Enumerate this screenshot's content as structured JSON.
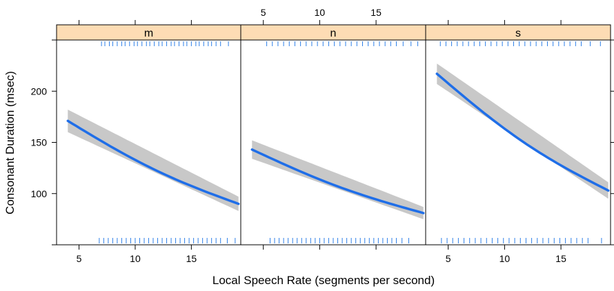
{
  "chart_data": {
    "type": "line",
    "xlabel": "Local Speech Rate (segments per second)",
    "ylabel": "Consonant Duration (msec)",
    "xlim": [
      3,
      19.4
    ],
    "ylim": [
      50,
      250
    ],
    "x_ticks": [
      5,
      10,
      15
    ],
    "y_ticks": [
      100,
      150,
      200
    ],
    "strip_color": "#fddcb4",
    "line_color": "#1f6ee8",
    "band_color": "#c8c8c8",
    "rug_color": "#2d7fe8",
    "panels": [
      {
        "label": "m",
        "x": [
          4,
          19.2
        ],
        "y": [
          171,
          90
        ],
        "band_half_width": [
          11,
          7
        ],
        "rug_top": [
          7,
          7.3,
          7.7,
          8,
          8.4,
          8.8,
          9.1,
          9.5,
          9.9,
          10.2,
          10.6,
          11,
          11.3,
          11.7,
          12.1,
          12.4,
          12.8,
          13.2,
          13.5,
          13.9,
          14.3,
          14.6,
          15,
          15.4,
          15.7,
          16.1,
          16.5,
          16.8,
          17.2,
          17.6,
          18.3
        ],
        "rug_bottom": [
          6.8,
          7.2,
          7.6,
          8,
          8.4,
          8.8,
          9.2,
          9.6,
          10,
          10.4,
          10.8,
          11.2,
          11.6,
          12,
          12.4,
          12.8,
          13.2,
          13.6,
          14,
          14.4,
          14.8,
          15.2,
          15.6,
          16,
          16.4,
          16.8,
          17.2,
          17.6,
          18.2,
          18.9
        ]
      },
      {
        "label": "n",
        "x": [
          4,
          19.2
        ],
        "y": [
          143,
          81
        ],
        "band_half_width": [
          9,
          6
        ],
        "rug_top": [
          5.3,
          5.8,
          6.3,
          6.8,
          7.3,
          7.8,
          8.3,
          8.8,
          9.3,
          9.8,
          10.3,
          10.8,
          11.3,
          11.8,
          12.3,
          12.8,
          13.3,
          13.8,
          14.3,
          14.8,
          15.3,
          15.8,
          16.3,
          16.8,
          17.4,
          18.1,
          18.7
        ],
        "rug_bottom": [
          5.6,
          6,
          6.4,
          6.8,
          7.2,
          7.6,
          8,
          8.4,
          8.8,
          9.2,
          9.6,
          10,
          10.4,
          10.8,
          11.2,
          11.6,
          12,
          12.4,
          12.8,
          13.2,
          13.6,
          14,
          14.4,
          14.8,
          15.2,
          15.6,
          16,
          16.4,
          16.8,
          17.3,
          17.9
        ]
      },
      {
        "label": "s",
        "x": [
          4,
          19.2
        ],
        "y": [
          217,
          103
        ],
        "band_half_width": [
          10,
          8
        ],
        "rug_top": [
          4.3,
          4.8,
          5.3,
          5.8,
          6.3,
          6.8,
          7.3,
          7.8,
          8.3,
          8.8,
          9.3,
          9.8,
          10.3,
          10.8,
          11.3,
          11.8,
          12.3,
          12.8,
          13.3,
          13.8,
          14.3,
          14.8,
          15.3,
          15.8,
          16.3,
          16.8,
          17.6,
          18.5
        ],
        "rug_bottom": [
          4.4,
          4.9,
          5.4,
          5.9,
          6.4,
          6.9,
          7.4,
          7.9,
          8.4,
          8.9,
          9.4,
          9.9,
          10.4,
          10.9,
          11.4,
          11.9,
          12.4,
          12.9,
          13.4,
          13.9,
          14.4,
          14.9,
          15.4,
          15.9,
          16.4,
          16.9,
          17.4,
          18.6
        ]
      }
    ]
  }
}
